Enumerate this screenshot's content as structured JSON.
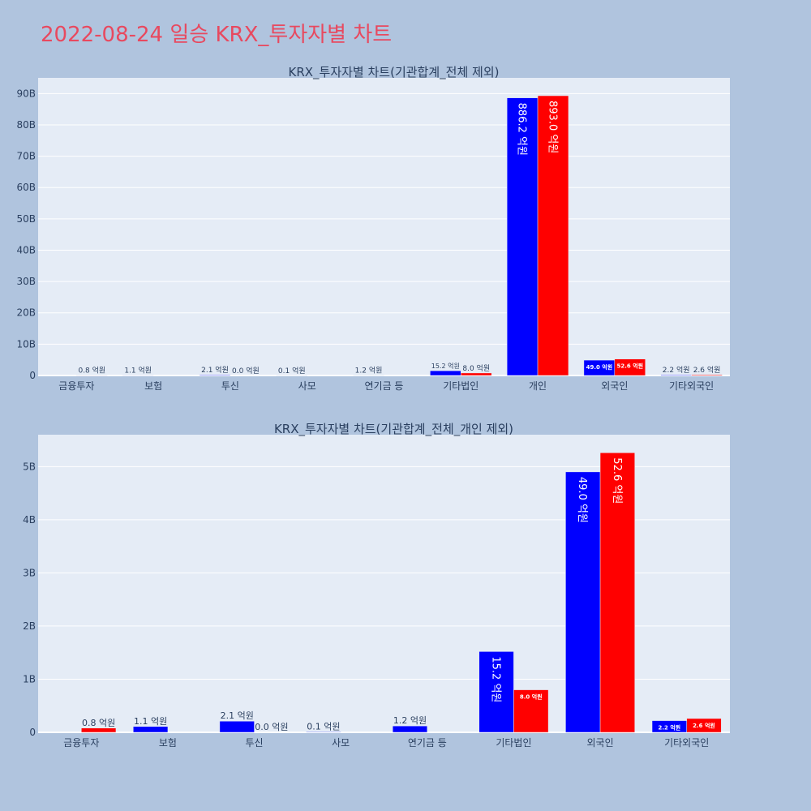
{
  "page": {
    "title": "2022-08-24 일승 KRX_투자자별 차트"
  },
  "colors": {
    "page_bg": "#b0c4de",
    "plot_bg": "#e5ecf6",
    "grid": "#ffffff",
    "title": "#e8495f",
    "text": "#2a3f5f",
    "series_a": "#0000ff",
    "series_b": "#ff0000"
  },
  "chart_data": [
    {
      "type": "bar",
      "title": "KRX_투자자별 차트(기관합계_전체 제외)",
      "categories": [
        "금융투자",
        "보험",
        "투신",
        "사모",
        "연기금 등",
        "기타법인",
        "개인",
        "외국인",
        "기타외국인"
      ],
      "series": [
        {
          "color": "#0000ff",
          "values": [
            0,
            110000000,
            210000000,
            10000000,
            120000000,
            1520000000,
            88620000000,
            4900000000,
            220000000
          ],
          "labels": [
            "",
            "1.1 억원",
            "2.1 억원",
            "0.1 억원",
            "1.2 억원",
            "15.2 억원",
            "886.2 억원",
            "49.0 억원",
            "2.2 억원"
          ]
        },
        {
          "color": "#ff0000",
          "values": [
            80000000,
            0,
            0,
            0,
            0,
            800000000,
            89300000000,
            5260000000,
            260000000
          ],
          "labels": [
            "0.8 억원",
            "",
            "0.0 억원",
            "",
            "",
            "8.0 억원",
            "893.0 억원",
            "52.6 억원",
            "2.6 억원"
          ]
        }
      ],
      "ylim": [
        0,
        95000000000
      ],
      "yticks": [
        0,
        10000000000,
        20000000000,
        30000000000,
        40000000000,
        50000000000,
        60000000000,
        70000000000,
        80000000000,
        90000000000
      ],
      "ytick_labels": [
        "0",
        "10B",
        "20B",
        "30B",
        "40B",
        "50B",
        "60B",
        "70B",
        "80B",
        "90B"
      ],
      "grid": true
    },
    {
      "type": "bar",
      "title": "KRX_투자자별 차트(기관합계_전체_개인 제외)",
      "categories": [
        "금융투자",
        "보험",
        "투신",
        "사모",
        "연기금 등",
        "기타법인",
        "외국인",
        "기타외국인"
      ],
      "series": [
        {
          "color": "#0000ff",
          "values": [
            0,
            110000000,
            210000000,
            10000000,
            120000000,
            1520000000,
            4900000000,
            220000000
          ],
          "labels": [
            "",
            "1.1 억원",
            "2.1 억원",
            "0.1 억원",
            "1.2 억원",
            "15.2 억원",
            "49.0 억원",
            "2.2 억원"
          ]
        },
        {
          "color": "#ff0000",
          "values": [
            80000000,
            0,
            0,
            0,
            0,
            800000000,
            5260000000,
            260000000
          ],
          "labels": [
            "0.8 억원",
            "",
            "0.0 억원",
            "",
            "",
            "8.0 억원",
            "52.6 억원",
            "2.6 억원"
          ]
        }
      ],
      "ylim": [
        0,
        5600000000
      ],
      "yticks": [
        0,
        1000000000,
        2000000000,
        3000000000,
        4000000000,
        5000000000
      ],
      "ytick_labels": [
        "0",
        "1B",
        "2B",
        "3B",
        "4B",
        "5B"
      ],
      "grid": true
    }
  ]
}
